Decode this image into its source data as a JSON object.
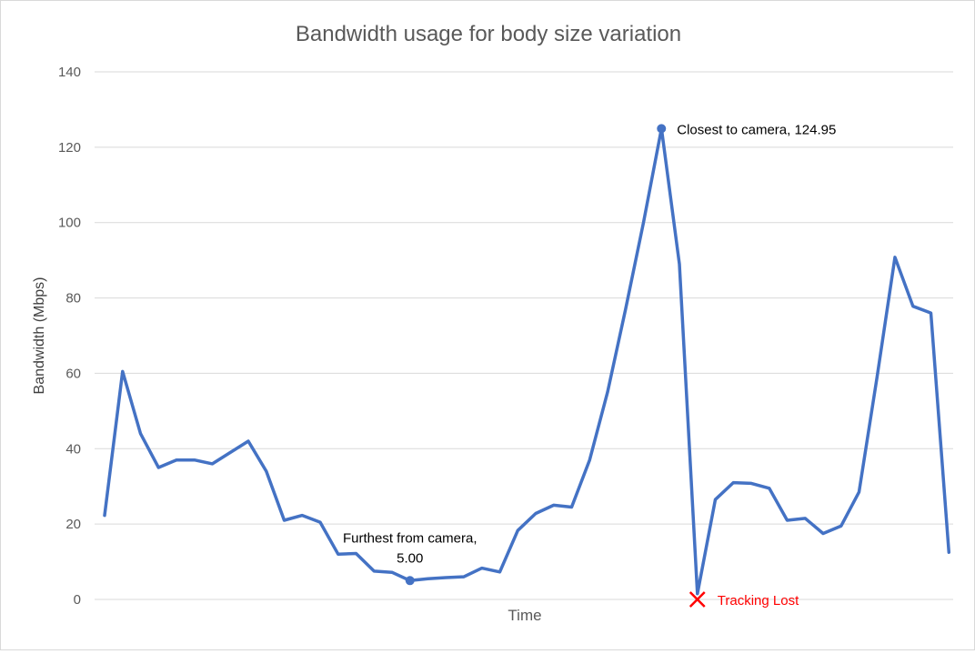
{
  "chart_data": {
    "type": "line",
    "title": "Bandwidth usage for body size variation",
    "xlabel": "Time",
    "ylabel": "Bandwidth (Mbps)",
    "ylim": [
      0,
      140
    ],
    "yticks": [
      0,
      20,
      40,
      60,
      80,
      100,
      120,
      140
    ],
    "grid": true,
    "legend": "none",
    "series": [
      {
        "color": "#4472c4",
        "values": [
          22.3,
          60.5,
          44.0,
          35.0,
          37.0,
          37.0,
          36.0,
          39.0,
          42.0,
          34.0,
          21.0,
          22.3,
          20.5,
          12.0,
          12.2,
          7.5,
          7.2,
          5.0,
          5.5,
          5.8,
          6.0,
          8.3,
          7.3,
          18.3,
          22.8,
          25.0,
          24.5,
          37.0,
          55.0,
          77.0,
          100.0,
          124.95,
          89.0,
          1.5,
          26.5,
          31.0,
          30.8,
          29.5,
          21.0,
          21.5,
          17.5,
          19.5,
          28.5,
          59.0,
          90.8,
          77.8,
          76.0,
          12.5
        ]
      }
    ],
    "annotations": [
      {
        "label": "Closest to camera, 124.95",
        "index": 31,
        "value": 124.95,
        "color": "#000000"
      },
      {
        "label_line1": "Furthest from camera,",
        "label_line2": "5.00",
        "index": 17,
        "value": 5.0,
        "color": "#000000"
      },
      {
        "label": "Tracking Lost",
        "index": 33,
        "value": 0,
        "marker": "x",
        "color": "#ff0000"
      }
    ]
  }
}
